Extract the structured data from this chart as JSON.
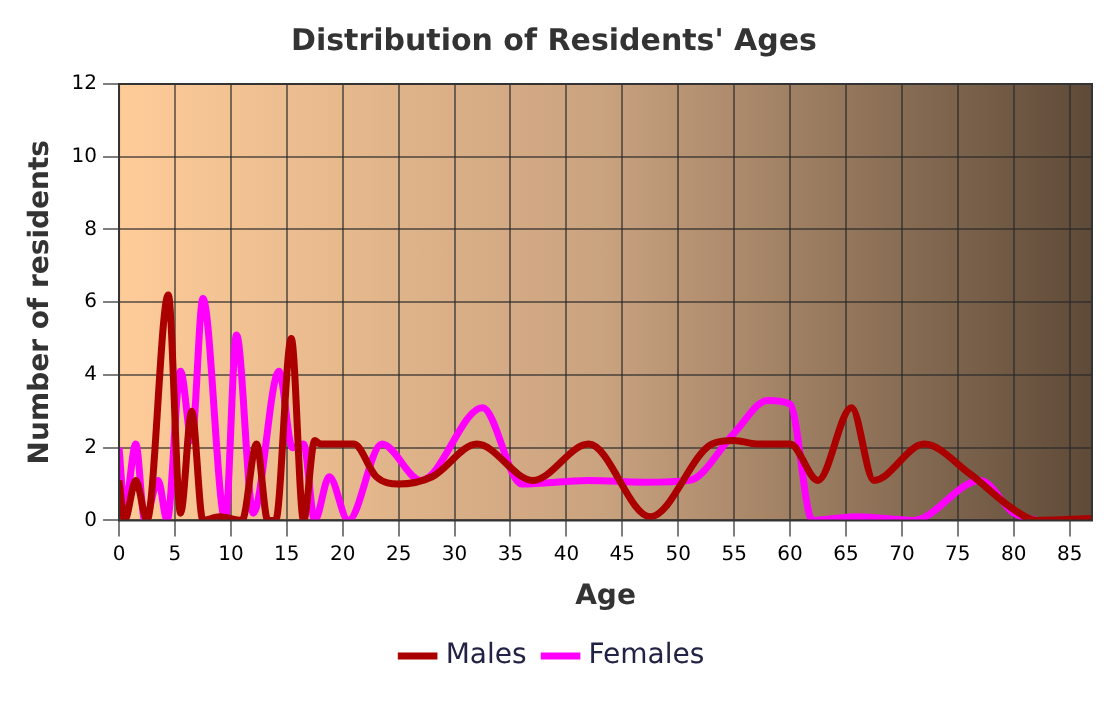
{
  "chart_data": {
    "type": "line",
    "title": "Distribution of Residents' Ages",
    "xlabel": "Age",
    "ylabel": "Number of residents",
    "xlim": [
      0,
      87
    ],
    "xticks": [
      0,
      5,
      10,
      15,
      20,
      25,
      30,
      35,
      40,
      45,
      50,
      55,
      60,
      65,
      70,
      75,
      80,
      85
    ],
    "ylim": [
      0,
      12
    ],
    "yticks": [
      0,
      2,
      4,
      6,
      8,
      10,
      12
    ],
    "grid": true,
    "legend": "bottom",
    "marker": "none",
    "line_style": "solid",
    "series": [
      {
        "name": "Males",
        "color": "#aa0000",
        "x": [
          0,
          0.5,
          1.5,
          2.5,
          4.4,
          5.5,
          6.5,
          7.5,
          9,
          11,
          12.3,
          13.3,
          14,
          15.4,
          16.5,
          17.5,
          18,
          21,
          23,
          25,
          28,
          32,
          37,
          42,
          47.5,
          53,
          55,
          57,
          60,
          62.5,
          65.5,
          67.5,
          72,
          76,
          80,
          82,
          87
        ],
        "values": [
          1.1,
          0,
          1.1,
          0,
          6.2,
          0.2,
          3,
          0,
          0.1,
          0,
          2.1,
          0,
          0,
          5,
          0,
          2.2,
          2.1,
          2.1,
          1.2,
          1,
          1.2,
          2.1,
          1.1,
          2.1,
          0.1,
          2.1,
          2.2,
          2.1,
          2.1,
          1.1,
          3.1,
          1.1,
          2.1,
          1.3,
          0.3,
          0,
          0.05
        ]
      },
      {
        "name": "Females",
        "color": "#ff00ff",
        "x": [
          0,
          0.5,
          1.5,
          2.3,
          3.5,
          4.3,
          5.5,
          6.5,
          7.5,
          9.5,
          10.5,
          12,
          14.3,
          15.5,
          16.5,
          17.5,
          18.8,
          20.5,
          23.5,
          27,
          32.5,
          36,
          42,
          47,
          51,
          55,
          58,
          60,
          62,
          66,
          71,
          77,
          80,
          82
        ],
        "values": [
          2,
          0.3,
          2.1,
          0,
          1.1,
          0,
          4.1,
          2.2,
          6.1,
          0,
          5.1,
          0.2,
          4.1,
          2,
          2.1,
          0,
          1.2,
          0,
          2.1,
          1.1,
          3.1,
          1,
          1.1,
          1.05,
          1.1,
          2.4,
          3.3,
          3.2,
          0,
          0.1,
          0,
          1.1,
          0.2,
          0
        ]
      }
    ]
  }
}
